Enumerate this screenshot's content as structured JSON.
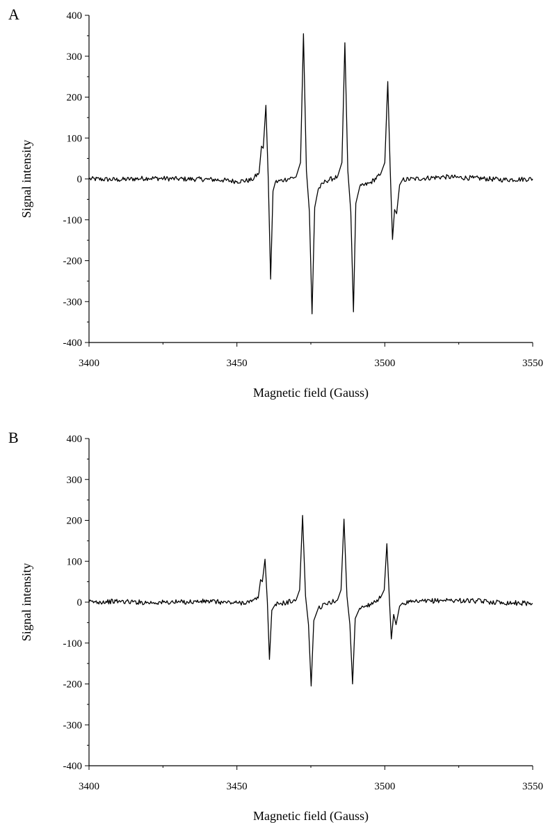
{
  "chart_data": [
    {
      "type": "line",
      "panel_label": "A",
      "xlabel": "Magnetic field (Gauss)",
      "ylabel": "Signal intensity",
      "xlim": [
        3400,
        3550
      ],
      "ylim": [
        -400,
        400
      ],
      "xticks": [
        3400,
        3450,
        3500,
        3550
      ],
      "yticks": [
        -400,
        -300,
        -200,
        -100,
        0,
        100,
        200,
        300,
        400
      ],
      "grid": false,
      "series": [
        {
          "values": [
            [
              3400,
              0
            ],
            [
              3410,
              -2
            ],
            [
              3420,
              2
            ],
            [
              3430,
              0
            ],
            [
              3440,
              -1
            ],
            [
              3445,
              -3
            ],
            [
              3450,
              -6
            ],
            [
              3455,
              -3
            ],
            [
              3457.5,
              15
            ],
            [
              3458.3,
              80
            ],
            [
              3458.9,
              75
            ],
            [
              3459.8,
              180
            ],
            [
              3460.6,
              0
            ],
            [
              3461.4,
              -245
            ],
            [
              3462.2,
              -30
            ],
            [
              3463,
              -8
            ],
            [
              3466,
              -2
            ],
            [
              3470,
              5
            ],
            [
              3471.5,
              40
            ],
            [
              3472.5,
              355
            ],
            [
              3473.5,
              20
            ],
            [
              3474.5,
              -80
            ],
            [
              3475.4,
              -330
            ],
            [
              3476.3,
              -70
            ],
            [
              3477.5,
              -25
            ],
            [
              3480,
              -5
            ],
            [
              3484,
              5
            ],
            [
              3485.5,
              40
            ],
            [
              3486.5,
              333
            ],
            [
              3487.5,
              20
            ],
            [
              3488.5,
              -80
            ],
            [
              3489.4,
              -325
            ],
            [
              3490.2,
              -60
            ],
            [
              3491.5,
              -20
            ],
            [
              3495,
              -10
            ],
            [
              3498.5,
              10
            ],
            [
              3500,
              40
            ],
            [
              3501,
              238
            ],
            [
              3501.8,
              30
            ],
            [
              3502.6,
              -148
            ],
            [
              3503.3,
              -75
            ],
            [
              3504,
              -85
            ],
            [
              3505,
              -15
            ],
            [
              3506,
              -2
            ],
            [
              3510,
              0
            ],
            [
              3520,
              5
            ],
            [
              3530,
              2
            ],
            [
              3540,
              -2
            ],
            [
              3550,
              0
            ]
          ]
        }
      ]
    },
    {
      "type": "line",
      "panel_label": "B",
      "xlabel": "Magnetic field (Gauss)",
      "ylabel": "Signal intensity",
      "xlim": [
        3400,
        3550
      ],
      "ylim": [
        -400,
        400
      ],
      "xticks": [
        3400,
        3450,
        3500,
        3550
      ],
      "yticks": [
        -400,
        -300,
        -200,
        -100,
        0,
        100,
        200,
        300,
        400
      ],
      "grid": false,
      "series": [
        {
          "values": [
            [
              3400,
              0
            ],
            [
              3410,
              2
            ],
            [
              3420,
              -1
            ],
            [
              3430,
              0
            ],
            [
              3440,
              2
            ],
            [
              3445,
              0
            ],
            [
              3450,
              -2
            ],
            [
              3455,
              1
            ],
            [
              3457.2,
              10
            ],
            [
              3458,
              55
            ],
            [
              3458.6,
              50
            ],
            [
              3459.5,
              105
            ],
            [
              3460.3,
              0
            ],
            [
              3461,
              -140
            ],
            [
              3461.8,
              -20
            ],
            [
              3463,
              -5
            ],
            [
              3466,
              -2
            ],
            [
              3470,
              5
            ],
            [
              3471.2,
              30
            ],
            [
              3472.2,
              212
            ],
            [
              3473.2,
              15
            ],
            [
              3474.2,
              -55
            ],
            [
              3475.1,
              -205
            ],
            [
              3476,
              -45
            ],
            [
              3477.5,
              -15
            ],
            [
              3480,
              -5
            ],
            [
              3484,
              5
            ],
            [
              3485.2,
              30
            ],
            [
              3486.2,
              203
            ],
            [
              3487.2,
              15
            ],
            [
              3488.2,
              -55
            ],
            [
              3489.1,
              -200
            ],
            [
              3490,
              -40
            ],
            [
              3491.5,
              -15
            ],
            [
              3495,
              -5
            ],
            [
              3498.5,
              10
            ],
            [
              3499.8,
              30
            ],
            [
              3500.7,
              143
            ],
            [
              3501.5,
              15
            ],
            [
              3502.2,
              -90
            ],
            [
              3503,
              -30
            ],
            [
              3503.8,
              -55
            ],
            [
              3505,
              -10
            ],
            [
              3506,
              -2
            ],
            [
              3510,
              0
            ],
            [
              3520,
              5
            ],
            [
              3530,
              3
            ],
            [
              3540,
              -1
            ],
            [
              3550,
              -3
            ]
          ]
        }
      ]
    }
  ]
}
